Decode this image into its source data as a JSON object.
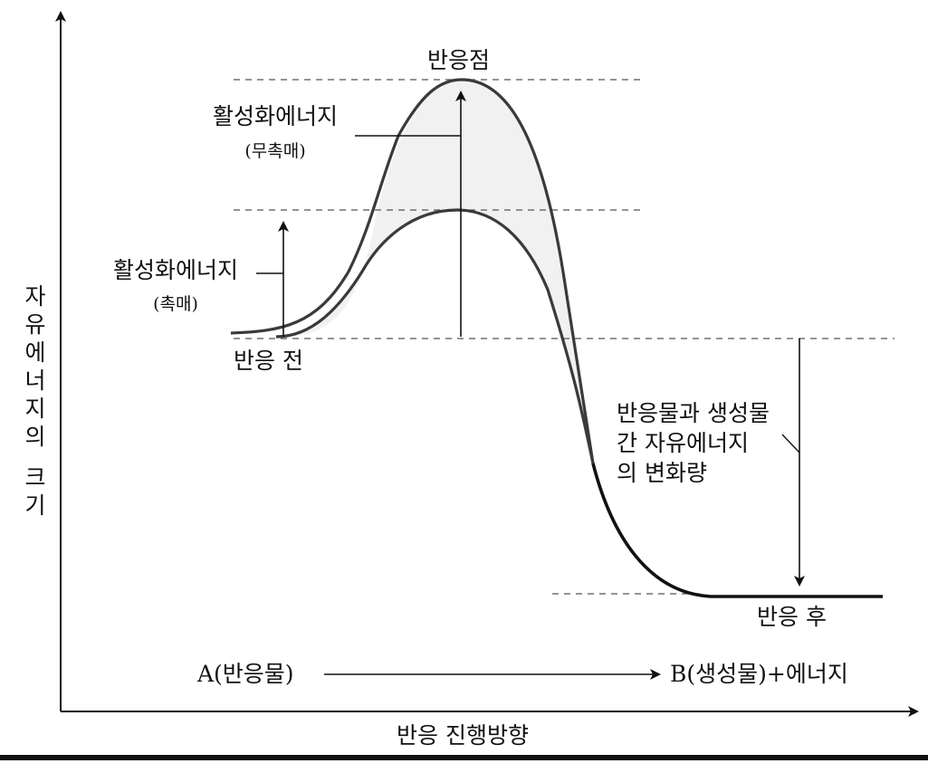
{
  "diagram": {
    "peak_label": "반응점",
    "activation_uncatalyzed": {
      "title": "활성화에너지",
      "note": "(무촉매)"
    },
    "activation_catalyzed": {
      "title": "활성화에너지",
      "note": "(촉매)"
    },
    "before_label": "반응 전",
    "after_label": "반응 후",
    "delta_g_label": [
      "반응물과 생성물",
      "간 자유에너지",
      "의 변화량"
    ],
    "y_axis_label": [
      "자",
      "유",
      "에",
      "너",
      "지",
      "의",
      "",
      "크",
      "기"
    ],
    "x_axis_label": "반응 진행방향",
    "reaction": {
      "reactant": "A(반응물)",
      "product": "B(생성물)+에너지"
    }
  }
}
